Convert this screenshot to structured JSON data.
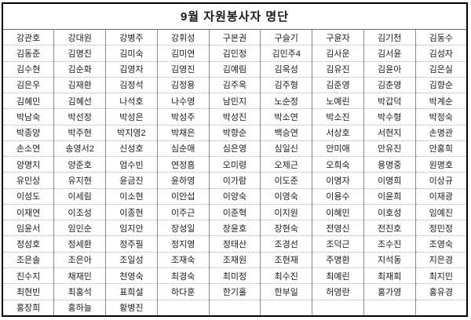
{
  "table": {
    "title": "9월 자원봉사자 명단",
    "columns": 9,
    "rows": [
      [
        "강관호",
        "강대원",
        "강병주",
        "강휘성",
        "구본권",
        "구슬기",
        "구윤자",
        "김기천",
        "김동수"
      ],
      [
        "김동준",
        "김명진",
        "김미숙",
        "김미연",
        "김민정",
        "김민주4",
        "김사운",
        "김서윤",
        "김성자"
      ],
      [
        "김수현",
        "김순화",
        "김영자",
        "김영진",
        "김예림",
        "김옥성",
        "김유진",
        "김윤아",
        "김은실"
      ],
      [
        "김은우",
        "김재환",
        "김정석",
        "김정용",
        "김주옥",
        "김주형",
        "김준영",
        "김춘영",
        "김향순"
      ],
      [
        "김혜민",
        "김혜선",
        "나석호",
        "나수영",
        "남민지",
        "노순정",
        "노예린",
        "박갑덕",
        "박계순"
      ],
      [
        "박남숙",
        "박선정",
        "박성은",
        "박성주",
        "박성진",
        "박소연",
        "박소진",
        "박수형",
        "박정숙"
      ],
      [
        "박종양",
        "박주현",
        "박지영2",
        "박채은",
        "박향순",
        "백승연",
        "서상호",
        "서현지",
        "손명관"
      ],
      [
        "손소연",
        "송영서2",
        "신성호",
        "심순애",
        "심은영",
        "심일신",
        "안미애",
        "안유진",
        "안홍희"
      ],
      [
        "양명지",
        "양준호",
        "엄수빈",
        "연정흠",
        "오미령",
        "오제근",
        "오희숙",
        "용명중",
        "원명호"
      ],
      [
        "유민상",
        "유지현",
        "윤금진",
        "윤하영",
        "이가람",
        "이도준",
        "이명자",
        "이명희",
        "이상규"
      ],
      [
        "이성도",
        "이세림",
        "이소현",
        "이안섭",
        "이양숙",
        "이영숙",
        "이용수",
        "이윤희",
        "이재광"
      ],
      [
        "이재연",
        "이조성",
        "이종현",
        "이주근",
        "이준혁",
        "이지원",
        "이혜민",
        "이호성",
        "임예진"
      ],
      [
        "임윤서",
        "임인순",
        "임지안",
        "장성일",
        "장윤호",
        "장현숙",
        "전영신",
        "전진호",
        "정민정"
      ],
      [
        "정성호",
        "정세환",
        "정주필",
        "정지영",
        "정태산",
        "조경선",
        "조덕근",
        "조수진",
        "조영숙"
      ],
      [
        "조은솔",
        "조은아",
        "조일성",
        "조재숙",
        "조재원",
        "조현재",
        "주명환",
        "지석동",
        "지은경"
      ],
      [
        "진수지",
        "채재민",
        "천영숙",
        "최경숙",
        "최미정",
        "최수진",
        "최예린",
        "최재회",
        "최지민"
      ],
      [
        "최현빈",
        "최홍석",
        "표희설",
        "하다훈",
        "한기홀",
        "한부일",
        "허영란",
        "홍가영",
        "홍유경"
      ],
      [
        "홍장희",
        "홍하늘",
        "황병진",
        "",
        "",
        "",
        "",
        "",
        ""
      ]
    ]
  },
  "colors": {
    "outer_border": "#000000",
    "grid_vertical": "#8c8c8c",
    "grid_horizontal": "#b0b0b0",
    "title_underline": "#666666",
    "text": "#1a1a1a",
    "background": "#ffffff"
  }
}
